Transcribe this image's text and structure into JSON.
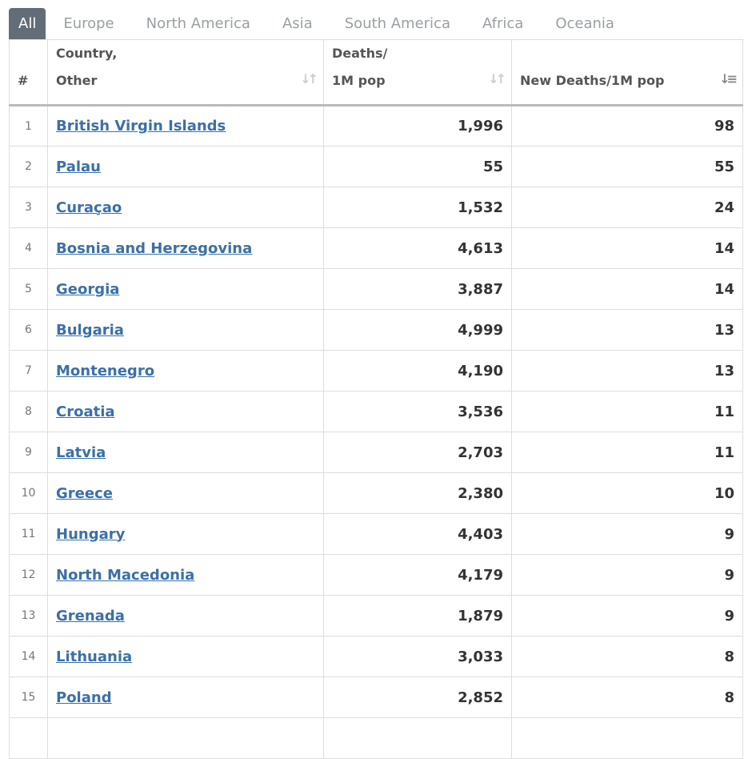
{
  "tabs": [
    "All",
    "Europe",
    "North America",
    "Asia",
    "South America",
    "Africa",
    "Oceania"
  ],
  "active_tab": "All",
  "headers": {
    "num": "#",
    "country_l1": "Country,",
    "country_l2": "Other",
    "deaths_l1": "Deaths/",
    "deaths_l2": "1M pop",
    "new_deaths": "New Deaths/1M pop"
  },
  "colors": {
    "link": "#3a70a8",
    "active_tab": "#636d77"
  },
  "rows": [
    {
      "n": "1",
      "country": "British Virgin Islands",
      "deaths": "1,996",
      "new": "98"
    },
    {
      "n": "2",
      "country": "Palau",
      "deaths": "55",
      "new": "55"
    },
    {
      "n": "3",
      "country": "Curaçao",
      "deaths": "1,532",
      "new": "24"
    },
    {
      "n": "4",
      "country": "Bosnia and Herzegovina",
      "deaths": "4,613",
      "new": "14"
    },
    {
      "n": "5",
      "country": "Georgia",
      "deaths": "3,887",
      "new": "14"
    },
    {
      "n": "6",
      "country": "Bulgaria",
      "deaths": "4,999",
      "new": "13"
    },
    {
      "n": "7",
      "country": "Montenegro",
      "deaths": "4,190",
      "new": "13"
    },
    {
      "n": "8",
      "country": "Croatia",
      "deaths": "3,536",
      "new": "11"
    },
    {
      "n": "9",
      "country": "Latvia",
      "deaths": "2,703",
      "new": "11"
    },
    {
      "n": "10",
      "country": "Greece",
      "deaths": "2,380",
      "new": "10"
    },
    {
      "n": "11",
      "country": "Hungary",
      "deaths": "4,403",
      "new": "9"
    },
    {
      "n": "12",
      "country": "North Macedonia",
      "deaths": "4,179",
      "new": "9"
    },
    {
      "n": "13",
      "country": "Grenada",
      "deaths": "1,879",
      "new": "9"
    },
    {
      "n": "14",
      "country": "Lithuania",
      "deaths": "3,033",
      "new": "8"
    },
    {
      "n": "15",
      "country": "Poland",
      "deaths": "2,852",
      "new": "8"
    }
  ]
}
